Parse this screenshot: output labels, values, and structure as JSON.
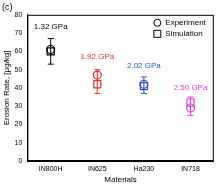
{
  "chart_data": {
    "type": "scatter",
    "title": "(c)",
    "x_label": "Materials",
    "y_label": "Erosion Rate, [μg/kg]",
    "categories": [
      "IN800H",
      "IN625",
      "Ha230",
      "IN718"
    ],
    "series": [
      {
        "name": "Experiment",
        "marker": "circle",
        "colors": [
          "#000000",
          "#e03030",
          "#3050c8",
          "#e040e0"
        ],
        "values": [
          61,
          47,
          42,
          29
        ],
        "errors": [
          [
            53,
            67
          ],
          [
            37,
            50
          ],
          [
            37,
            46
          ],
          [
            25,
            35
          ]
        ]
      },
      {
        "name": "Simulation",
        "marker": "square",
        "colors": [
          "#000000",
          "#e03030",
          "#3050c8",
          "#e040e0"
        ],
        "values": [
          60,
          42,
          41,
          32
        ]
      }
    ],
    "annotations": [
      {
        "text": "1.32 GPa",
        "x": "IN800H",
        "y": 71,
        "color": "#000000"
      },
      {
        "text": "1.92 GPa",
        "x": "IN625",
        "y": 55,
        "color": "#e03030"
      },
      {
        "text": "2.02 GPa",
        "x": "Ha230",
        "y": 50,
        "color": "#3050c8"
      },
      {
        "text": "2.50 GPa",
        "x": "IN718",
        "y": 38,
        "color": "#e040e0"
      }
    ],
    "legend": "top-right",
    "ylim": [
      0,
      80
    ],
    "yticks": [
      0,
      10,
      20,
      30,
      40,
      50,
      60,
      70,
      80
    ],
    "grid": false
  }
}
